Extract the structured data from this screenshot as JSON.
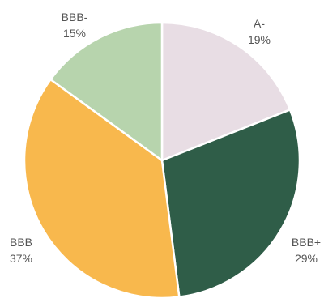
{
  "chart_data": {
    "type": "pie",
    "slices": [
      {
        "label": "A-",
        "value": 19,
        "value_label": "19%",
        "color": "#e8dde4"
      },
      {
        "label": "BBB+",
        "value": 29,
        "value_label": "29%",
        "color": "#2f5d48"
      },
      {
        "label": "BBB",
        "value": 37,
        "value_label": "37%",
        "color": "#f8b84d"
      },
      {
        "label": "BBB-",
        "value": 15,
        "value_label": "15%",
        "color": "#b7d4ad"
      }
    ],
    "start_angle_deg": 0,
    "direction": "clockwise"
  }
}
